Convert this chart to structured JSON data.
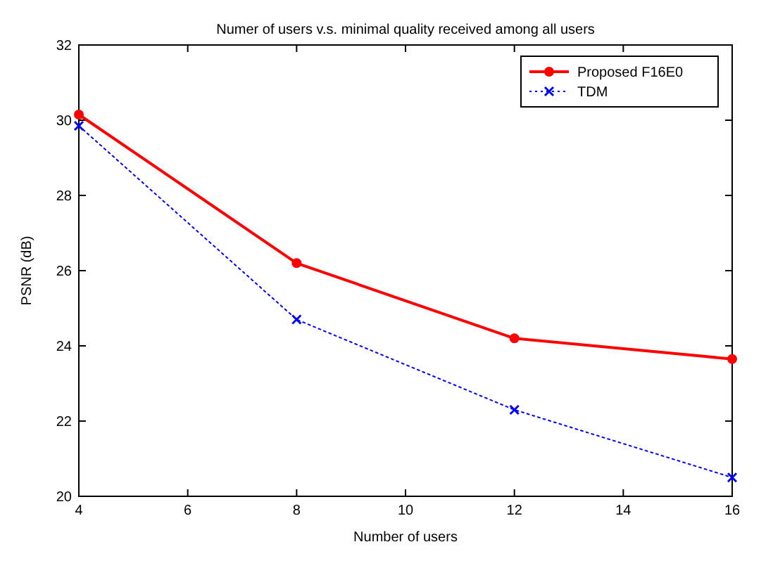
{
  "chart_data": {
    "type": "line",
    "title": "Numer of users v.s. minimal quality received among all users",
    "xlabel": "Number of users",
    "ylabel": "PSNR (dB)",
    "x": [
      4,
      8,
      12,
      16
    ],
    "xlim": [
      4,
      16
    ],
    "xticks": [
      4,
      6,
      8,
      10,
      12,
      14,
      16
    ],
    "ylim": [
      20,
      32
    ],
    "yticks": [
      20,
      22,
      24,
      26,
      28,
      30,
      32
    ],
    "grid": false,
    "legend": "top right",
    "series": [
      {
        "name": "Proposed F16E0",
        "color": "#ff0000",
        "values": [
          30.15,
          26.2,
          24.2,
          23.65
        ],
        "marker": "circle",
        "line_style": "solid"
      },
      {
        "name": "TDM",
        "color": "#0000ff",
        "values": [
          29.85,
          24.7,
          22.3,
          20.5
        ],
        "marker": "cross",
        "line_style": "dotted"
      }
    ]
  }
}
